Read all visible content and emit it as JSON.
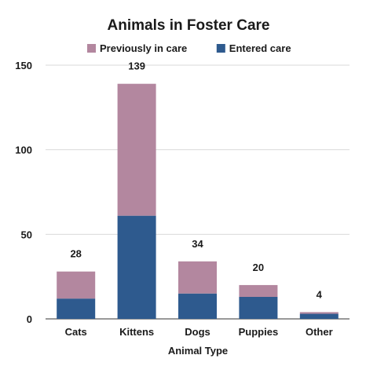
{
  "chart_data": {
    "type": "bar",
    "stacked": true,
    "title": "Animals in Foster Care",
    "xlabel": "Animal Type",
    "ylabel": "",
    "ylim": [
      0,
      150
    ],
    "yticks": [
      0,
      50,
      100,
      150
    ],
    "grid": true,
    "legend_position": "top",
    "categories": [
      "Cats",
      "Kittens",
      "Dogs",
      "Puppies",
      "Other"
    ],
    "series": [
      {
        "name": "Entered care",
        "color": "#2e5a8e",
        "values": [
          12,
          61,
          15,
          13,
          3
        ]
      },
      {
        "name": "Previously in care",
        "color": "#b3879f",
        "values": [
          16,
          78,
          19,
          7,
          1
        ]
      }
    ],
    "totals": [
      28,
      139,
      34,
      20,
      4
    ],
    "legend_order": [
      "Previously in care",
      "Entered care"
    ]
  }
}
